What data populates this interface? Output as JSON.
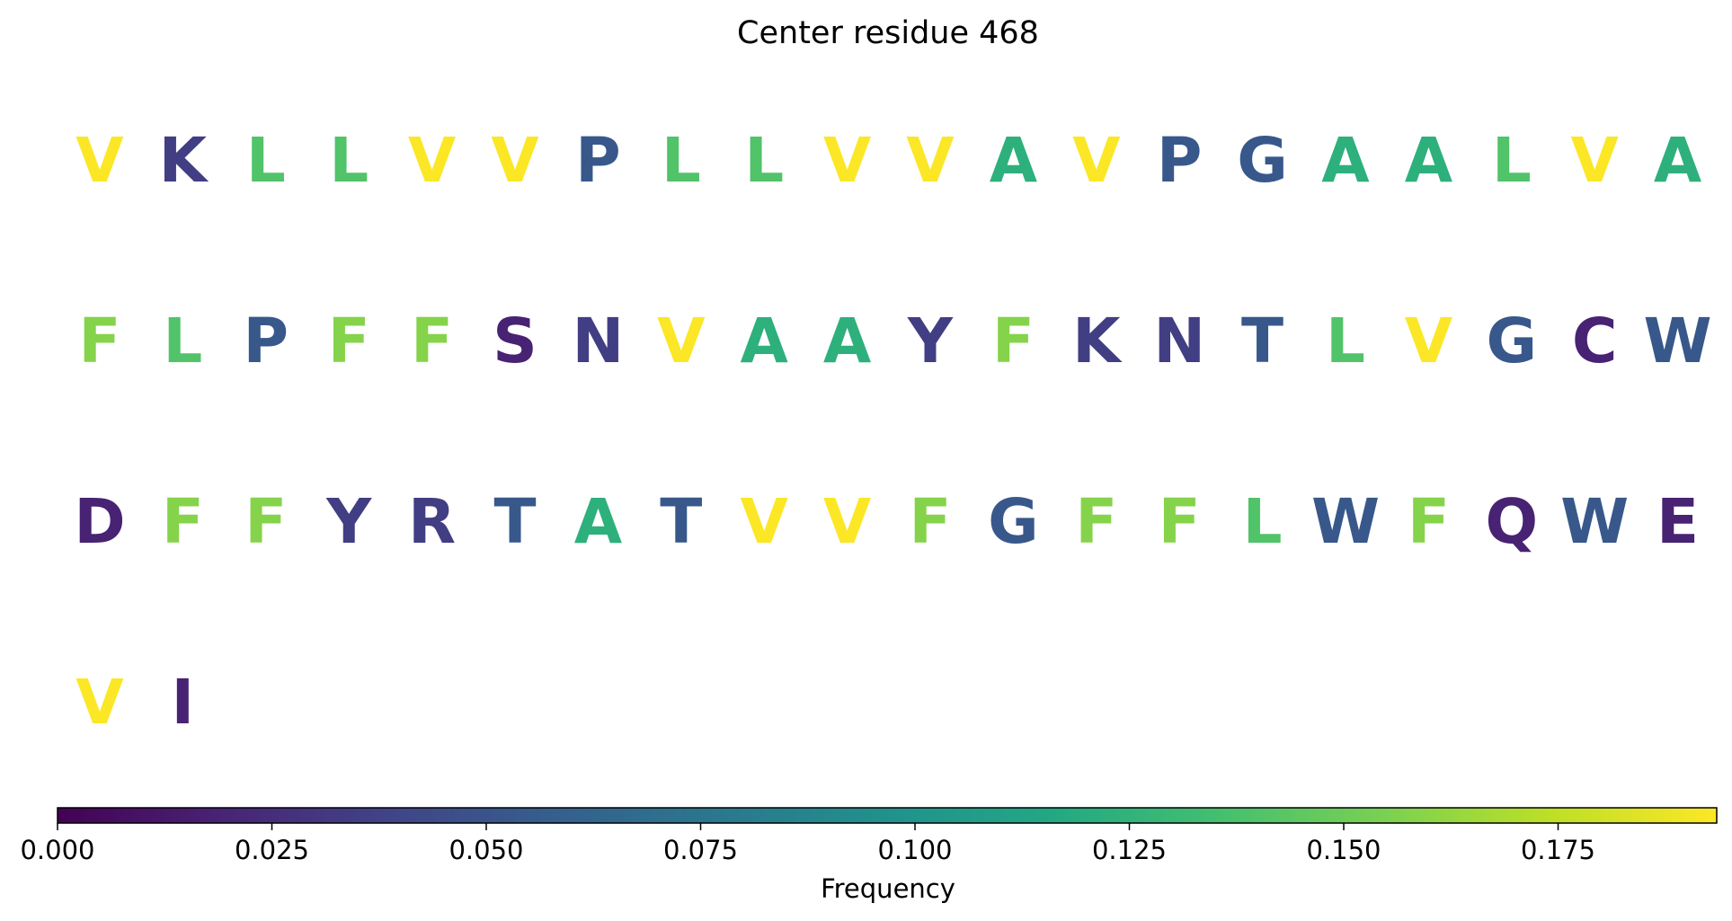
{
  "chart_data": {
    "type": "table",
    "title": "Center residue 468",
    "colormap": "viridis",
    "colorbar": {
      "label": "Frequency",
      "range": [
        0,
        0.1935
      ],
      "ticks": [
        "0.000",
        "0.025",
        "0.050",
        "0.075",
        "0.100",
        "0.125",
        "0.150",
        "0.175"
      ],
      "tick_values": [
        0,
        0.025,
        0.05,
        0.075,
        0.1,
        0.125,
        0.15,
        0.175
      ],
      "orientation": "horizontal",
      "placement": "bottom"
    },
    "columns": 20,
    "residues": [
      {
        "letter": "V",
        "value": 0.193
      },
      {
        "letter": "K",
        "value": 0.035
      },
      {
        "letter": "L",
        "value": 0.14
      },
      {
        "letter": "L",
        "value": 0.14
      },
      {
        "letter": "V",
        "value": 0.193
      },
      {
        "letter": "V",
        "value": 0.193
      },
      {
        "letter": "P",
        "value": 0.053
      },
      {
        "letter": "L",
        "value": 0.14
      },
      {
        "letter": "L",
        "value": 0.14
      },
      {
        "letter": "V",
        "value": 0.193
      },
      {
        "letter": "V",
        "value": 0.193
      },
      {
        "letter": "A",
        "value": 0.123
      },
      {
        "letter": "V",
        "value": 0.193
      },
      {
        "letter": "P",
        "value": 0.053
      },
      {
        "letter": "G",
        "value": 0.053
      },
      {
        "letter": "A",
        "value": 0.123
      },
      {
        "letter": "A",
        "value": 0.123
      },
      {
        "letter": "L",
        "value": 0.14
      },
      {
        "letter": "V",
        "value": 0.193
      },
      {
        "letter": "A",
        "value": 0.123
      },
      {
        "letter": "F",
        "value": 0.158
      },
      {
        "letter": "L",
        "value": 0.14
      },
      {
        "letter": "P",
        "value": 0.053
      },
      {
        "letter": "F",
        "value": 0.158
      },
      {
        "letter": "F",
        "value": 0.158
      },
      {
        "letter": "S",
        "value": 0.018
      },
      {
        "letter": "N",
        "value": 0.035
      },
      {
        "letter": "V",
        "value": 0.193
      },
      {
        "letter": "A",
        "value": 0.123
      },
      {
        "letter": "A",
        "value": 0.123
      },
      {
        "letter": "Y",
        "value": 0.035
      },
      {
        "letter": "F",
        "value": 0.158
      },
      {
        "letter": "K",
        "value": 0.035
      },
      {
        "letter": "N",
        "value": 0.035
      },
      {
        "letter": "T",
        "value": 0.053
      },
      {
        "letter": "L",
        "value": 0.14
      },
      {
        "letter": "V",
        "value": 0.193
      },
      {
        "letter": "G",
        "value": 0.053
      },
      {
        "letter": "C",
        "value": 0.018
      },
      {
        "letter": "W",
        "value": 0.053
      },
      {
        "letter": "D",
        "value": 0.018
      },
      {
        "letter": "F",
        "value": 0.158
      },
      {
        "letter": "F",
        "value": 0.158
      },
      {
        "letter": "Y",
        "value": 0.035
      },
      {
        "letter": "R",
        "value": 0.035
      },
      {
        "letter": "T",
        "value": 0.053
      },
      {
        "letter": "A",
        "value": 0.123
      },
      {
        "letter": "T",
        "value": 0.053
      },
      {
        "letter": "V",
        "value": 0.193
      },
      {
        "letter": "V",
        "value": 0.193
      },
      {
        "letter": "F",
        "value": 0.158
      },
      {
        "letter": "G",
        "value": 0.053
      },
      {
        "letter": "F",
        "value": 0.158
      },
      {
        "letter": "F",
        "value": 0.158
      },
      {
        "letter": "L",
        "value": 0.14
      },
      {
        "letter": "W",
        "value": 0.053
      },
      {
        "letter": "F",
        "value": 0.158
      },
      {
        "letter": "Q",
        "value": 0.018
      },
      {
        "letter": "W",
        "value": 0.053
      },
      {
        "letter": "E",
        "value": 0.018
      },
      {
        "letter": "V",
        "value": 0.193
      },
      {
        "letter": "I",
        "value": 0.018
      }
    ]
  }
}
